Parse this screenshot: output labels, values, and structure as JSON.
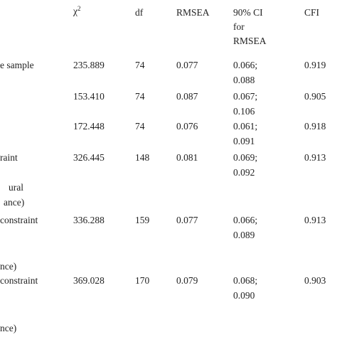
{
  "table": {
    "header": {
      "chi2": {
        "symbol": "χ",
        "superscript": "2"
      },
      "df": "df",
      "rmsea": "RMSEA",
      "ci": [
        "90% CI",
        "for",
        "RMSEA"
      ],
      "cfi": "CFI"
    },
    "left_labels": [
      "e sample",
      "raint",
      "ural",
      "ance)",
      "constraint",
      "nce)",
      "constraint",
      "nce)"
    ],
    "rows": [
      {
        "chi2": "235.889",
        "df": "74",
        "rmsea": "0.077",
        "ci": [
          "0.066;",
          "0.088"
        ],
        "cfi": "0.919"
      },
      {
        "chi2": "153.410",
        "df": "74",
        "rmsea": "0.087",
        "ci": [
          "0.067;",
          "0.106"
        ],
        "cfi": "0.905"
      },
      {
        "chi2": "172.448",
        "df": "74",
        "rmsea": "0.076",
        "ci": [
          "0.061;",
          "0.091"
        ],
        "cfi": "0.918"
      },
      {
        "chi2": "326.445",
        "df": "148",
        "rmsea": "0.081",
        "ci": [
          "0.069;",
          "0.092"
        ],
        "cfi": "0.913"
      },
      {
        "chi2": "336.288",
        "df": "159",
        "rmsea": "0.077",
        "ci": [
          "0.066;",
          "0.089"
        ],
        "cfi": "0.913"
      },
      {
        "chi2": "369.028",
        "df": "170",
        "rmsea": "0.079",
        "ci": [
          "0.068;",
          "0.090"
        ],
        "cfi": "0.903"
      }
    ]
  }
}
